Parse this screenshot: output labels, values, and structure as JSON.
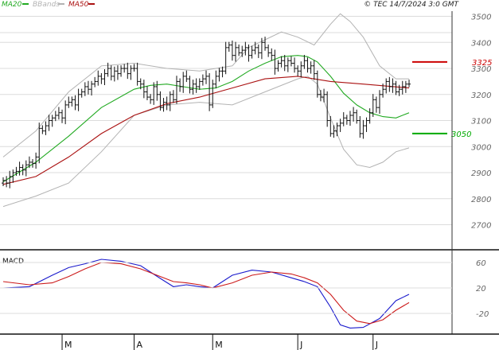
{
  "header": {
    "legend": [
      {
        "label": "MA20",
        "color": "#22aa22"
      },
      {
        "label": "BBands",
        "color": "#b3b3b3"
      },
      {
        "label": "MA50",
        "color": "#aa1111"
      }
    ],
    "copyright": "© TEC 14/7/2024 3:0 GMT"
  },
  "chart_data": [
    {
      "type": "ohlc",
      "y_ticks": [
        "3500",
        "3400",
        "3300",
        "3200",
        "3100",
        "3000",
        "2900",
        "2800",
        "2700"
      ],
      "y_tick_values": [
        3500,
        3400,
        3300,
        3200,
        3100,
        3000,
        2900,
        2800,
        2700
      ],
      "ylim": [
        2610,
        3520
      ],
      "x_ticks": [
        "M",
        "A",
        "M",
        "J",
        "J"
      ],
      "x_tick_index": [
        18,
        40,
        64,
        90,
        113
      ],
      "n_bars": 125,
      "closes": [
        2870,
        2860,
        2885,
        2900,
        2905,
        2920,
        2910,
        2930,
        2940,
        2935,
        2960,
        3070,
        3060,
        3080,
        3100,
        3110,
        3120,
        3130,
        3110,
        3160,
        3170,
        3180,
        3160,
        3200,
        3210,
        3230,
        3220,
        3240,
        3250,
        3270,
        3260,
        3280,
        3300,
        3270,
        3290,
        3280,
        3300,
        3300,
        3280,
        3300,
        3300,
        3250,
        3240,
        3210,
        3190,
        3180,
        3230,
        3200,
        3150,
        3170,
        3160,
        3200,
        3180,
        3250,
        3230,
        3270,
        3260,
        3220,
        3240,
        3230,
        3250,
        3260,
        3270,
        3160,
        3240,
        3270,
        3290,
        3290,
        3380,
        3390,
        3350,
        3380,
        3360,
        3370,
        3380,
        3350,
        3370,
        3380,
        3360,
        3400,
        3380,
        3360,
        3350,
        3300,
        3320,
        3330,
        3310,
        3330,
        3320,
        3300,
        3290,
        3310,
        3330,
        3300,
        3310,
        3280,
        3200,
        3190,
        3200,
        3100,
        3050,
        3060,
        3080,
        3090,
        3110,
        3100,
        3120,
        3130,
        3100,
        3050,
        3080,
        3100,
        3130,
        3180,
        3150,
        3200,
        3220,
        3250,
        3230,
        3240,
        3210,
        3220,
        3230,
        3240,
        3240
      ],
      "series": [
        {
          "name": "MA20",
          "color": "#22aa22",
          "x": [
            0,
            10,
            20,
            30,
            40,
            45,
            50,
            55,
            60,
            65,
            70,
            75,
            80,
            85,
            90,
            93,
            96,
            100,
            104,
            108,
            112,
            116,
            120,
            124
          ],
          "y": [
            2865,
            2940,
            3040,
            3150,
            3220,
            3235,
            3240,
            3230,
            3220,
            3225,
            3250,
            3290,
            3320,
            3345,
            3350,
            3345,
            3325,
            3270,
            3205,
            3160,
            3130,
            3115,
            3110,
            3130
          ]
        },
        {
          "name": "MA50",
          "color": "#aa1111",
          "x": [
            0,
            10,
            20,
            30,
            40,
            50,
            60,
            70,
            80,
            90,
            100,
            110,
            124
          ],
          "y": [
            2855,
            2885,
            2960,
            3050,
            3120,
            3165,
            3190,
            3225,
            3260,
            3270,
            3250,
            3240,
            3225
          ]
        },
        {
          "name": "BBand upper",
          "color": "#b3b3b3",
          "x": [
            0,
            10,
            20,
            30,
            40,
            50,
            60,
            70,
            75,
            80,
            85,
            90,
            95,
            100,
            103,
            106,
            110,
            115,
            120,
            124
          ],
          "y": [
            2960,
            3060,
            3210,
            3310,
            3320,
            3300,
            3290,
            3310,
            3380,
            3410,
            3440,
            3420,
            3390,
            3470,
            3510,
            3480,
            3420,
            3310,
            3260,
            3260
          ]
        },
        {
          "name": "BBand lower",
          "color": "#b3b3b3",
          "x": [
            0,
            10,
            20,
            30,
            40,
            50,
            60,
            70,
            80,
            90,
            93,
            96,
            100,
            104,
            108,
            112,
            116,
            120,
            124
          ],
          "y": [
            2770,
            2810,
            2860,
            2980,
            3120,
            3160,
            3170,
            3160,
            3210,
            3260,
            3270,
            3240,
            3110,
            2990,
            2930,
            2920,
            2940,
            2980,
            2995
          ]
        }
      ],
      "annotations": [
        {
          "label": "3325",
          "value": 3325,
          "color": "#cc0000"
        },
        {
          "label": "3050",
          "value": 3050,
          "color": "#00aa00"
        }
      ]
    },
    {
      "type": "line",
      "title": "MACD",
      "y_ticks": [
        "60",
        "20",
        "-20"
      ],
      "y_tick_values": [
        60,
        20,
        -20
      ],
      "ylim": [
        -50,
        75
      ],
      "series": [
        {
          "name": "MACD",
          "color": "#1a1acc",
          "x": [
            0,
            8,
            15,
            20,
            25,
            30,
            36,
            42,
            48,
            52,
            56,
            60,
            64,
            70,
            76,
            82,
            88,
            92,
            96,
            100,
            103,
            106,
            110,
            115,
            120,
            124
          ],
          "y": [
            20,
            22,
            40,
            52,
            58,
            65,
            62,
            55,
            35,
            22,
            25,
            22,
            20,
            40,
            48,
            45,
            36,
            30,
            22,
            -10,
            -38,
            -43,
            -42,
            -28,
            0,
            10
          ]
        },
        {
          "name": "Signal",
          "color": "#cc1a1a",
          "x": [
            0,
            8,
            15,
            20,
            25,
            30,
            36,
            42,
            48,
            52,
            56,
            60,
            64,
            70,
            76,
            82,
            88,
            92,
            96,
            100,
            104,
            108,
            112,
            116,
            120,
            124
          ],
          "y": [
            30,
            25,
            28,
            38,
            50,
            60,
            58,
            50,
            38,
            30,
            28,
            25,
            20,
            28,
            40,
            45,
            42,
            36,
            28,
            10,
            -15,
            -32,
            -36,
            -30,
            -15,
            -3
          ]
        }
      ]
    }
  ]
}
